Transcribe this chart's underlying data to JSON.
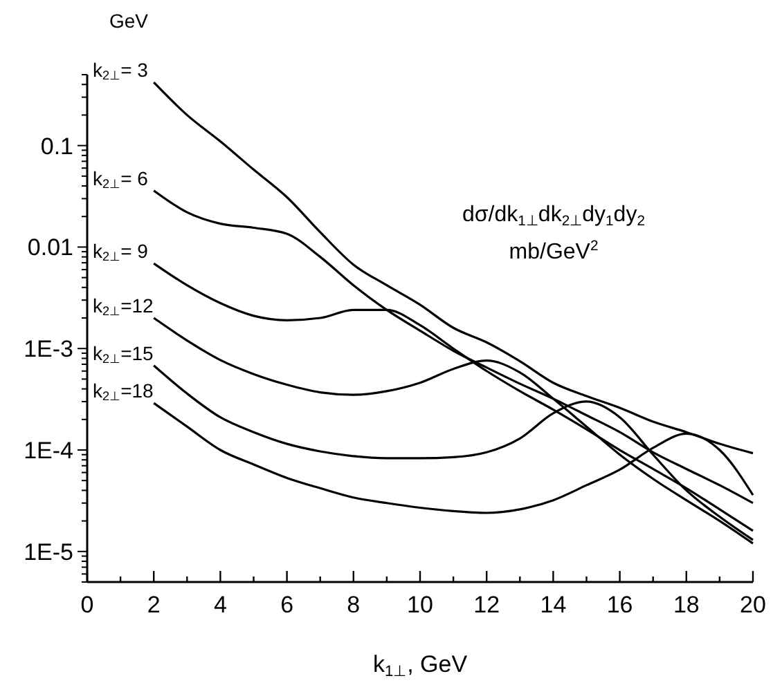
{
  "chart_data": {
    "type": "line",
    "xlabel": "k$_{1⊥}$, GeV",
    "legend_title": "GeV",
    "annotations": [
      "dσ/dk$_{1⊥}$dk$_{2⊥}$dy$_{1}$dy$_{2}$",
      "mb/GeV$^{2}$"
    ],
    "x": [
      2,
      3,
      4,
      5,
      6,
      7,
      8,
      9,
      10,
      11,
      12,
      13,
      14,
      15,
      16,
      17,
      18,
      19,
      20
    ],
    "log": "y",
    "grid": false,
    "marker": "none",
    "line_style": "solid",
    "xlim": [
      0,
      20
    ],
    "xticks": [
      0,
      {
        "value": 1,
        "label": null
      },
      2,
      {
        "value": 3,
        "label": null
      },
      4,
      {
        "value": 5,
        "label": null
      },
      6,
      {
        "value": 7,
        "label": null
      },
      8,
      {
        "value": 9,
        "label": null
      },
      10,
      {
        "value": 11,
        "label": null
      },
      12,
      {
        "value": 13,
        "label": null
      },
      14,
      {
        "value": 15,
        "label": null
      },
      16,
      {
        "value": 17,
        "label": null
      },
      18,
      {
        "value": 19,
        "label": null
      },
      20
    ],
    "ylim": [
      5e-06,
      0.5
    ],
    "yticks": [
      {
        "value": 5e-06,
        "label": null
      },
      {
        "value": 6e-06,
        "label": null
      },
      {
        "value": 7e-06,
        "label": null
      },
      {
        "value": 8e-06,
        "label": null
      },
      {
        "value": 9e-06,
        "label": null
      },
      {
        "value": 1e-05,
        "label": "1E-5"
      },
      {
        "value": 2e-05,
        "label": null
      },
      {
        "value": 3e-05,
        "label": null
      },
      {
        "value": 4e-05,
        "label": null
      },
      {
        "value": 5e-05,
        "label": null
      },
      {
        "value": 6e-05,
        "label": null
      },
      {
        "value": 7e-05,
        "label": null
      },
      {
        "value": 8e-05,
        "label": null
      },
      {
        "value": 9e-05,
        "label": null
      },
      {
        "value": 0.0001,
        "label": "1E-4"
      },
      {
        "value": 0.0002,
        "label": null
      },
      {
        "value": 0.0003,
        "label": null
      },
      {
        "value": 0.0004,
        "label": null
      },
      {
        "value": 0.0005,
        "label": null
      },
      {
        "value": 0.0006,
        "label": null
      },
      {
        "value": 0.0007,
        "label": null
      },
      {
        "value": 0.0008,
        "label": null
      },
      {
        "value": 0.0009,
        "label": null
      },
      {
        "value": 0.001,
        "label": "1E-3"
      },
      {
        "value": 0.002,
        "label": null
      },
      {
        "value": 0.003,
        "label": null
      },
      {
        "value": 0.004,
        "label": null
      },
      {
        "value": 0.005,
        "label": null
      },
      {
        "value": 0.006,
        "label": null
      },
      {
        "value": 0.007,
        "label": null
      },
      {
        "value": 0.008,
        "label": null
      },
      {
        "value": 0.009,
        "label": null
      },
      0.01,
      {
        "value": 0.02,
        "label": null
      },
      {
        "value": 0.03,
        "label": null
      },
      {
        "value": 0.04,
        "label": null
      },
      {
        "value": 0.05,
        "label": null
      },
      {
        "value": 0.06,
        "label": null
      },
      {
        "value": 0.07,
        "label": null
      },
      {
        "value": 0.08,
        "label": null
      },
      {
        "value": 0.09,
        "label": null
      },
      0.1,
      {
        "value": 0.2,
        "label": null
      },
      {
        "value": 0.3,
        "label": null
      },
      {
        "value": 0.4,
        "label": null
      },
      {
        "value": 0.5,
        "label": null
      }
    ],
    "series": [
      {
        "name": "k$_{2⊥}$= 3",
        "color": "#000000",
        "values": [
          0.42,
          0.2,
          0.11,
          0.058,
          0.031,
          0.014,
          0.0067,
          0.0042,
          0.0027,
          0.0016,
          0.00115,
          0.00075,
          0.00046,
          0.00034,
          0.00026,
          0.00019,
          0.00015,
          0.000115,
          9.3e-05
        ]
      },
      {
        "name": "k$_{2⊥}$= 6",
        "color": "#000000",
        "values": [
          0.036,
          0.022,
          0.017,
          0.0155,
          0.0135,
          0.008,
          0.0042,
          0.0024,
          0.0015,
          0.00095,
          0.00065,
          0.00045,
          0.00032,
          0.00022,
          0.00015,
          9.5e-05,
          6.5e-05,
          4.5e-05,
          3e-05
        ]
      },
      {
        "name": "k$_{2⊥}$= 9",
        "color": "#000000",
        "values": [
          0.0069,
          0.0042,
          0.0028,
          0.0021,
          0.0019,
          0.002,
          0.0024,
          0.0024,
          0.0017,
          0.001,
          0.0006,
          0.00038,
          0.00025,
          0.00016,
          0.0001,
          6.5e-05,
          4.2e-05,
          2.6e-05,
          1.6e-05
        ]
      },
      {
        "name": "k$_{2⊥}$=12",
        "color": "#000000",
        "values": [
          0.002,
          0.0012,
          0.00077,
          0.00056,
          0.00044,
          0.00037,
          0.00035,
          0.00038,
          0.00046,
          0.00063,
          0.00076,
          0.00058,
          0.00032,
          0.00017,
          9e-05,
          5.2e-05,
          3.2e-05,
          2e-05,
          1.2e-05
        ]
      },
      {
        "name": "k$_{2⊥}$=15",
        "color": "#000000",
        "values": [
          0.00068,
          0.00036,
          0.00021,
          0.00015,
          0.000115,
          9.7e-05,
          8.7e-05,
          8.3e-05,
          8.3e-05,
          8.5e-05,
          9.5e-05,
          0.00013,
          0.00023,
          0.0003,
          0.00021,
          9e-05,
          4e-05,
          2.2e-05,
          1.3e-05
        ]
      },
      {
        "name": "k$_{2⊥}$=18",
        "color": "#000000",
        "values": [
          0.00029,
          0.00017,
          0.0001,
          7.2e-05,
          5.3e-05,
          4.2e-05,
          3.4e-05,
          3e-05,
          2.7e-05,
          2.5e-05,
          2.4e-05,
          2.6e-05,
          3.2e-05,
          4.5e-05,
          6.4e-05,
          0.000105,
          0.000145,
          0.0001,
          3.6e-05
        ]
      }
    ]
  }
}
